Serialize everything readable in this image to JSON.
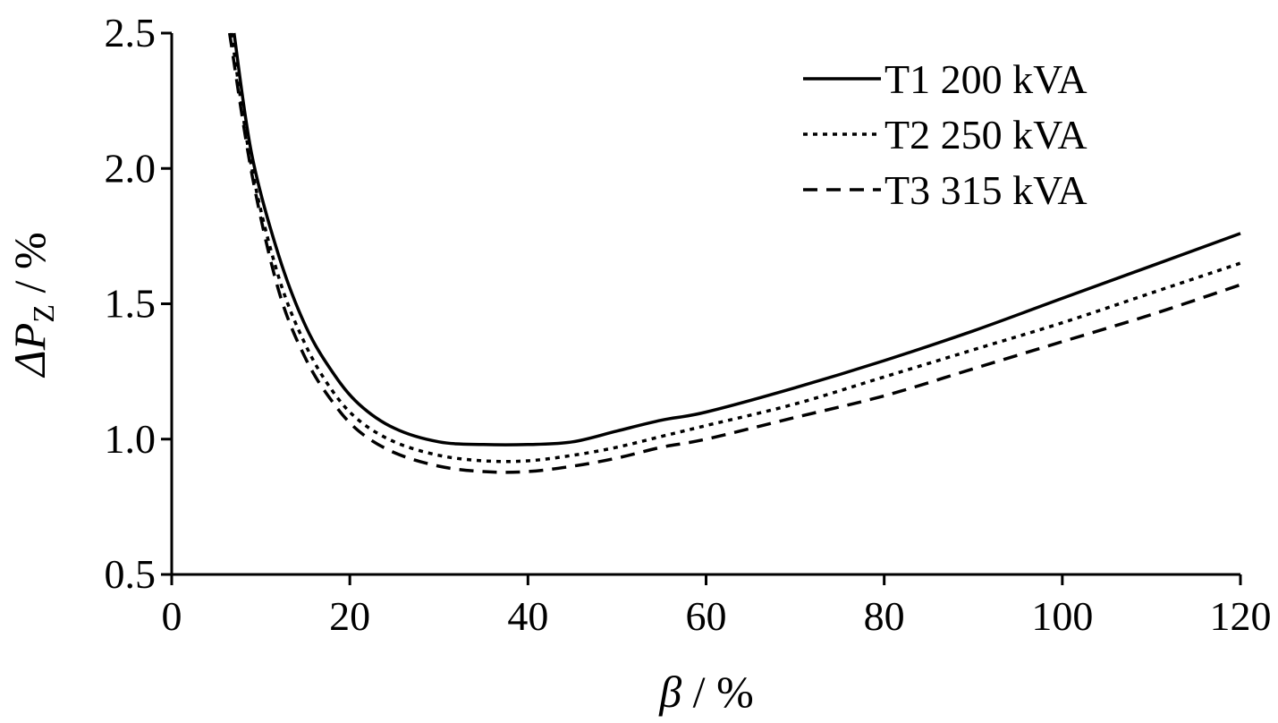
{
  "chart_data": {
    "type": "line",
    "title": "",
    "xlabel": {
      "symbol": "β",
      "unit": " / %"
    },
    "ylabel": {
      "symbol": "ΔP",
      "subscript": "Z",
      "unit": " / %"
    },
    "xlim": [
      0,
      120
    ],
    "ylim": [
      0.5,
      2.5
    ],
    "xticks": [
      0,
      20,
      40,
      60,
      80,
      100,
      120
    ],
    "xtick_labels": [
      "0",
      "20",
      "40",
      "60",
      "80",
      "100",
      "120"
    ],
    "yticks": [
      0.5,
      1.0,
      1.5,
      2.0,
      2.5
    ],
    "ytick_labels": [
      "0.5",
      "1.0",
      "1.5",
      "2.0",
      "2.5"
    ],
    "grid": false,
    "legend_position": "top-right",
    "series": [
      {
        "name": "T1 200 kVA",
        "style": "solid",
        "color": "#000000",
        "x": [
          7,
          9,
          12,
          15,
          18,
          21,
          25,
          30,
          35,
          40,
          45,
          50,
          55,
          60,
          70,
          80,
          90,
          100,
          110,
          120
        ],
        "y": [
          2.5,
          2.05,
          1.68,
          1.42,
          1.25,
          1.13,
          1.04,
          0.99,
          0.98,
          0.98,
          0.99,
          1.03,
          1.07,
          1.1,
          1.19,
          1.29,
          1.4,
          1.52,
          1.64,
          1.76
        ]
      },
      {
        "name": "T2 250 kVA",
        "style": "dotted",
        "color": "#000000",
        "x": [
          6.7,
          9,
          12,
          15,
          18,
          21,
          25,
          30,
          35,
          40,
          45,
          50,
          55,
          60,
          70,
          80,
          90,
          100,
          110,
          120
        ],
        "y": [
          2.5,
          2.0,
          1.6,
          1.35,
          1.18,
          1.07,
          0.99,
          0.94,
          0.92,
          0.92,
          0.94,
          0.97,
          1.01,
          1.05,
          1.13,
          1.23,
          1.33,
          1.43,
          1.54,
          1.65
        ]
      },
      {
        "name": "T3 315 kVA",
        "style": "dashed",
        "color": "#000000",
        "x": [
          6.5,
          9,
          12,
          15,
          18,
          21,
          25,
          30,
          35,
          40,
          45,
          50,
          55,
          60,
          70,
          80,
          90,
          100,
          110,
          120
        ],
        "y": [
          2.5,
          1.98,
          1.55,
          1.3,
          1.14,
          1.03,
          0.95,
          0.9,
          0.88,
          0.88,
          0.9,
          0.93,
          0.97,
          1.0,
          1.08,
          1.16,
          1.26,
          1.36,
          1.46,
          1.57
        ]
      }
    ]
  }
}
